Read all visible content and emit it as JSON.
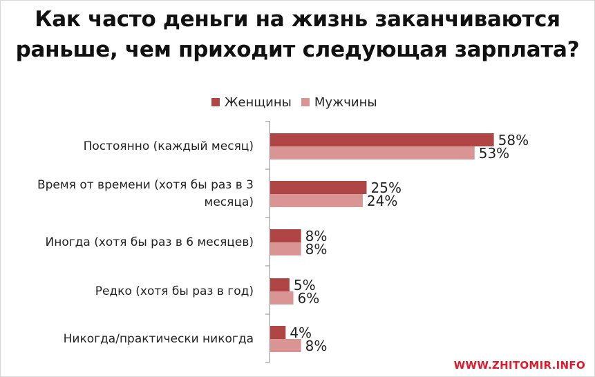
{
  "chart_data": {
    "type": "bar",
    "orientation": "horizontal",
    "title": "Как часто деньги на жизнь заканчиваются раньше, чем приходит следующая зарплата?",
    "title_lines": [
      "Как часто деньги на жизнь заканчиваются",
      "раньше, чем приходит следующая зарплата?"
    ],
    "categories": [
      "Постоянно (каждый месяц)",
      "Время от времени (хотя бы раз в 3 месяца)",
      "Иногда (хотя бы раз в 6 месяцев)",
      "Редко (хотя бы раз в год)",
      "Никогда/практически никогда"
    ],
    "category_lines": [
      [
        "Постоянно (каждый месяц)"
      ],
      [
        "Время от времени (хотя бы раз в 3",
        "месяца)"
      ],
      [
        "Иногда (хотя бы раз в 6 месяцев)"
      ],
      [
        "Редко (хотя бы раз в год)"
      ],
      [
        "Никогда/практически никогда"
      ]
    ],
    "series": [
      {
        "name": "Женщины",
        "color": "#b04545",
        "values": [
          58,
          25,
          8,
          5,
          4
        ],
        "labels": [
          "58%",
          "25%",
          "8%",
          "5%",
          "4%"
        ]
      },
      {
        "name": "Мужчины",
        "color": "#d99594",
        "values": [
          53,
          24,
          8,
          6,
          8
        ],
        "labels": [
          "53%",
          "24%",
          "8%",
          "6%",
          "8%"
        ]
      }
    ],
    "xlim": [
      0,
      100
    ],
    "unit": "%",
    "legend_position": "top",
    "grid": false
  },
  "watermark": "WWW.ZHITOMIR.INFO"
}
